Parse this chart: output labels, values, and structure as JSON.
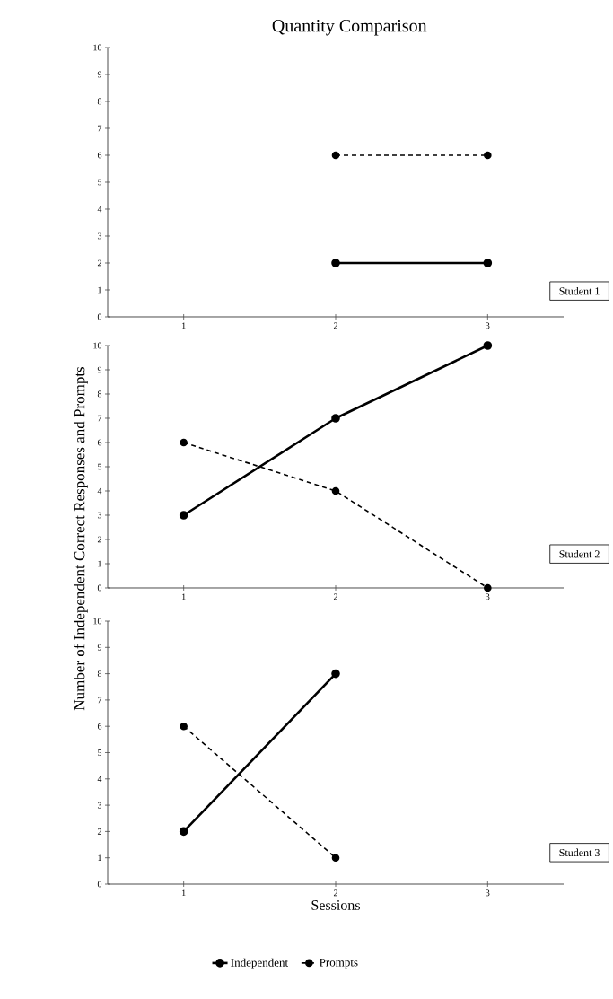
{
  "chart_data": [
    {
      "type": "line",
      "title": "Quantity Comparison",
      "xlim": [
        0.5,
        3.5
      ],
      "xticks": [
        1,
        2,
        3
      ],
      "ylim": [
        0,
        10
      ],
      "yticks": [
        0,
        1,
        2,
        3,
        4,
        5,
        6,
        7,
        8,
        9,
        10
      ],
      "marker": "circle",
      "annotations": [
        "Student 1"
      ],
      "series": [
        {
          "color": "#000000",
          "line_style": "solid",
          "x": [
            2,
            3
          ],
          "values": [
            2,
            2
          ]
        },
        {
          "color": "#000000",
          "line_style": "dashed",
          "x": [
            2,
            3
          ],
          "values": [
            6,
            6
          ]
        }
      ]
    },
    {
      "type": "line",
      "ylabel": "Number of Independent Correct Responses and Prompts",
      "xlim": [
        0.5,
        3.5
      ],
      "xticks": [
        1,
        2,
        3
      ],
      "ylim": [
        0,
        10
      ],
      "yticks": [
        0,
        1,
        2,
        3,
        4,
        5,
        6,
        7,
        8,
        9,
        10
      ],
      "marker": "circle",
      "annotations": [
        "Student 2"
      ],
      "series": [
        {
          "color": "#000000",
          "line_style": "solid",
          "x": [
            1,
            2,
            3
          ],
          "values": [
            3,
            7,
            10
          ]
        },
        {
          "color": "#000000",
          "line_style": "dashed",
          "x": [
            1,
            2,
            3
          ],
          "values": [
            6,
            4,
            0
          ]
        }
      ]
    },
    {
      "type": "line",
      "xlabel": "Sessions",
      "xlim": [
        0.5,
        3.5
      ],
      "xticks": [
        1,
        2,
        3
      ],
      "ylim": [
        0,
        10
      ],
      "yticks": [
        0,
        1,
        2,
        3,
        4,
        5,
        6,
        7,
        8,
        9,
        10
      ],
      "marker": "circle",
      "legend": "bottom",
      "annotations": [
        "Student 3"
      ],
      "series": [
        {
          "name": "Independent",
          "color": "#000000",
          "line_style": "solid",
          "x": [
            1,
            2
          ],
          "values": [
            2,
            8
          ]
        },
        {
          "name": "Prompts",
          "color": "#000000",
          "line_style": "dashed",
          "x": [
            1,
            2
          ],
          "values": [
            6,
            1
          ]
        }
      ]
    }
  ]
}
